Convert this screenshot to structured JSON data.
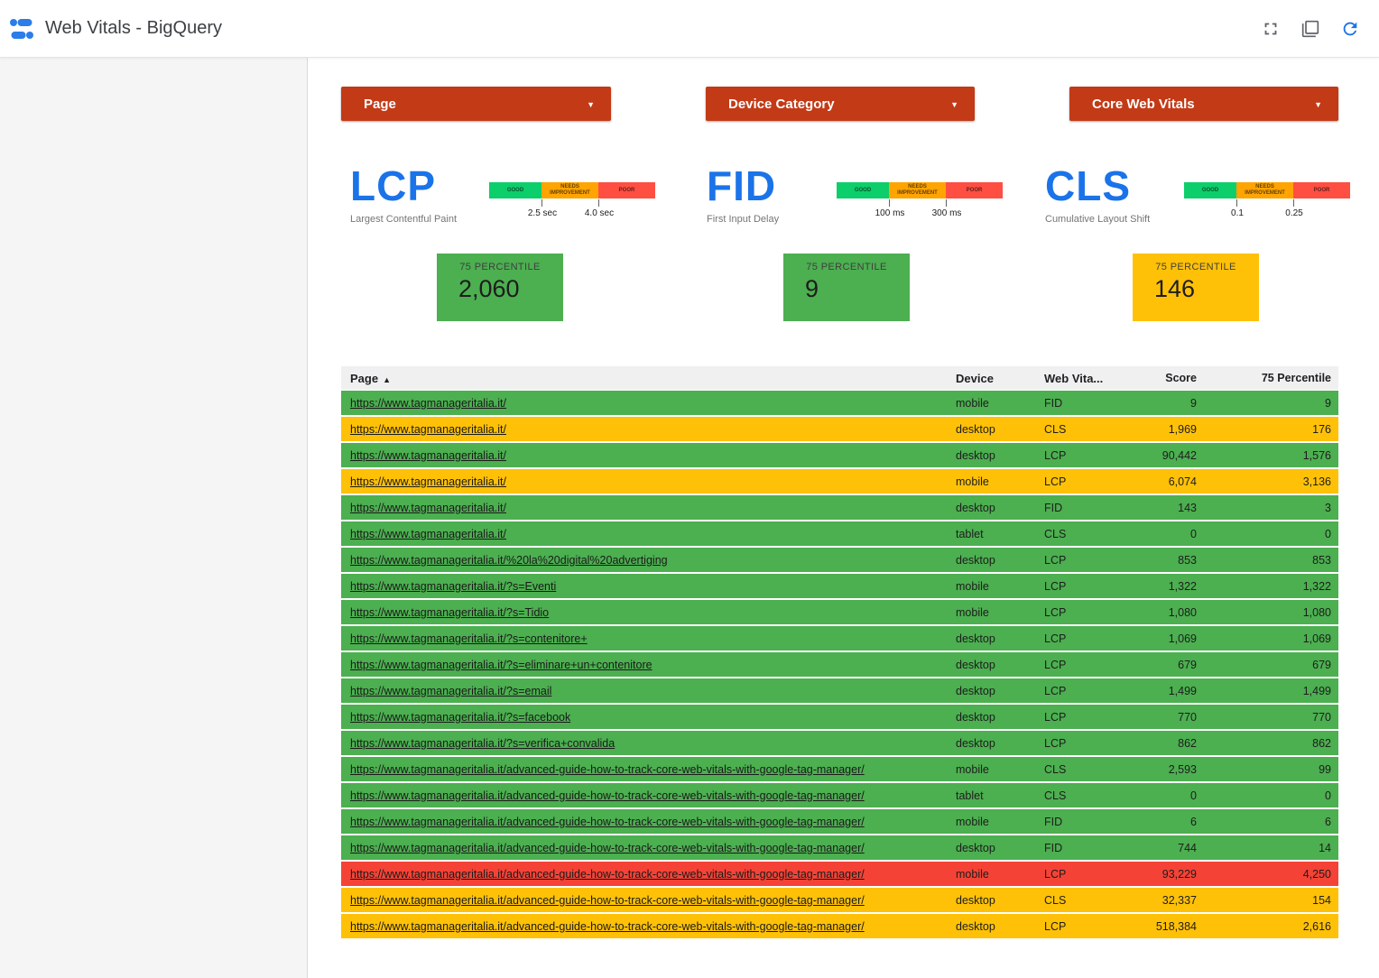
{
  "header": {
    "title": "Web Vitals - BigQuery"
  },
  "filters": [
    {
      "label": "Page"
    },
    {
      "label": "Device Category"
    },
    {
      "label": "Core Web Vitals"
    }
  ],
  "legend_labels": {
    "good": "GOOD",
    "needs_improvement": "NEEDS IMPROVEMENT",
    "poor": "POOR"
  },
  "metrics": [
    {
      "abbr": "LCP",
      "name": "Largest Contentful Paint",
      "threshold_low": "2.5 sec",
      "threshold_high": "4.0 sec",
      "card": {
        "label": "75 PERCENTILE",
        "value": "2,060",
        "status": "good"
      }
    },
    {
      "abbr": "FID",
      "name": "First Input Delay",
      "threshold_low": "100 ms",
      "threshold_high": "300 ms",
      "card": {
        "label": "75 PERCENTILE",
        "value": "9",
        "status": "good"
      }
    },
    {
      "abbr": "CLS",
      "name": "Cumulative Layout Shift",
      "threshold_low": "0.1",
      "threshold_high": "0.25",
      "card": {
        "label": "75 PERCENTILE",
        "value": "146",
        "status": "warn"
      }
    }
  ],
  "table": {
    "columns": {
      "page": "Page",
      "device": "Device",
      "vital": "Web Vita...",
      "score": "Score",
      "p75": "75 Percentile"
    },
    "sort_icon": "▲",
    "rows": [
      {
        "page": "https://www.tagmanageritalia.it/",
        "device": "mobile",
        "vital": "FID",
        "score": "9",
        "p75": "9",
        "status": "good"
      },
      {
        "page": "https://www.tagmanageritalia.it/",
        "device": "desktop",
        "vital": "CLS",
        "score": "1,969",
        "p75": "176",
        "status": "warn"
      },
      {
        "page": "https://www.tagmanageritalia.it/",
        "device": "desktop",
        "vital": "LCP",
        "score": "90,442",
        "p75": "1,576",
        "status": "good"
      },
      {
        "page": "https://www.tagmanageritalia.it/",
        "device": "mobile",
        "vital": "LCP",
        "score": "6,074",
        "p75": "3,136",
        "status": "warn"
      },
      {
        "page": "https://www.tagmanageritalia.it/",
        "device": "desktop",
        "vital": "FID",
        "score": "143",
        "p75": "3",
        "status": "good"
      },
      {
        "page": "https://www.tagmanageritalia.it/",
        "device": "tablet",
        "vital": "CLS",
        "score": "0",
        "p75": "0",
        "status": "good"
      },
      {
        "page": "https://www.tagmanageritalia.it/%20la%20digital%20advertiging",
        "device": "desktop",
        "vital": "LCP",
        "score": "853",
        "p75": "853",
        "status": "good"
      },
      {
        "page": "https://www.tagmanageritalia.it/?s=Eventi",
        "device": "mobile",
        "vital": "LCP",
        "score": "1,322",
        "p75": "1,322",
        "status": "good"
      },
      {
        "page": "https://www.tagmanageritalia.it/?s=Tidio",
        "device": "mobile",
        "vital": "LCP",
        "score": "1,080",
        "p75": "1,080",
        "status": "good"
      },
      {
        "page": "https://www.tagmanageritalia.it/?s=contenitore+",
        "device": "desktop",
        "vital": "LCP",
        "score": "1,069",
        "p75": "1,069",
        "status": "good"
      },
      {
        "page": "https://www.tagmanageritalia.it/?s=eliminare+un+contenitore",
        "device": "desktop",
        "vital": "LCP",
        "score": "679",
        "p75": "679",
        "status": "good"
      },
      {
        "page": "https://www.tagmanageritalia.it/?s=email",
        "device": "desktop",
        "vital": "LCP",
        "score": "1,499",
        "p75": "1,499",
        "status": "good"
      },
      {
        "page": "https://www.tagmanageritalia.it/?s=facebook",
        "device": "desktop",
        "vital": "LCP",
        "score": "770",
        "p75": "770",
        "status": "good"
      },
      {
        "page": "https://www.tagmanageritalia.it/?s=verifica+convalida",
        "device": "desktop",
        "vital": "LCP",
        "score": "862",
        "p75": "862",
        "status": "good"
      },
      {
        "page": "https://www.tagmanageritalia.it/advanced-guide-how-to-track-core-web-vitals-with-google-tag-manager/",
        "device": "mobile",
        "vital": "CLS",
        "score": "2,593",
        "p75": "99",
        "status": "good"
      },
      {
        "page": "https://www.tagmanageritalia.it/advanced-guide-how-to-track-core-web-vitals-with-google-tag-manager/",
        "device": "tablet",
        "vital": "CLS",
        "score": "0",
        "p75": "0",
        "status": "good"
      },
      {
        "page": "https://www.tagmanageritalia.it/advanced-guide-how-to-track-core-web-vitals-with-google-tag-manager/",
        "device": "mobile",
        "vital": "FID",
        "score": "6",
        "p75": "6",
        "status": "good"
      },
      {
        "page": "https://www.tagmanageritalia.it/advanced-guide-how-to-track-core-web-vitals-with-google-tag-manager/",
        "device": "desktop",
        "vital": "FID",
        "score": "744",
        "p75": "14",
        "status": "good"
      },
      {
        "page": "https://www.tagmanageritalia.it/advanced-guide-how-to-track-core-web-vitals-with-google-tag-manager/",
        "device": "mobile",
        "vital": "LCP",
        "score": "93,229",
        "p75": "4,250",
        "status": "poor"
      },
      {
        "page": "https://www.tagmanageritalia.it/advanced-guide-how-to-track-core-web-vitals-with-google-tag-manager/",
        "device": "desktop",
        "vital": "CLS",
        "score": "32,337",
        "p75": "154",
        "status": "warn"
      },
      {
        "page": "https://www.tagmanageritalia.it/advanced-guide-how-to-track-core-web-vitals-with-google-tag-manager/",
        "device": "desktop",
        "vital": "LCP",
        "score": "518,384",
        "p75": "2,616",
        "status": "warn"
      }
    ]
  },
  "colors": {
    "accent_blue": "#1a73e8",
    "filter_red": "#c33a17",
    "good_green": "#4caf50",
    "warn_yellow": "#ffc107",
    "poor_red": "#f44336",
    "legend_green": "#0cce6b",
    "legend_amber": "#ffa400",
    "legend_red": "#ff4e42"
  }
}
